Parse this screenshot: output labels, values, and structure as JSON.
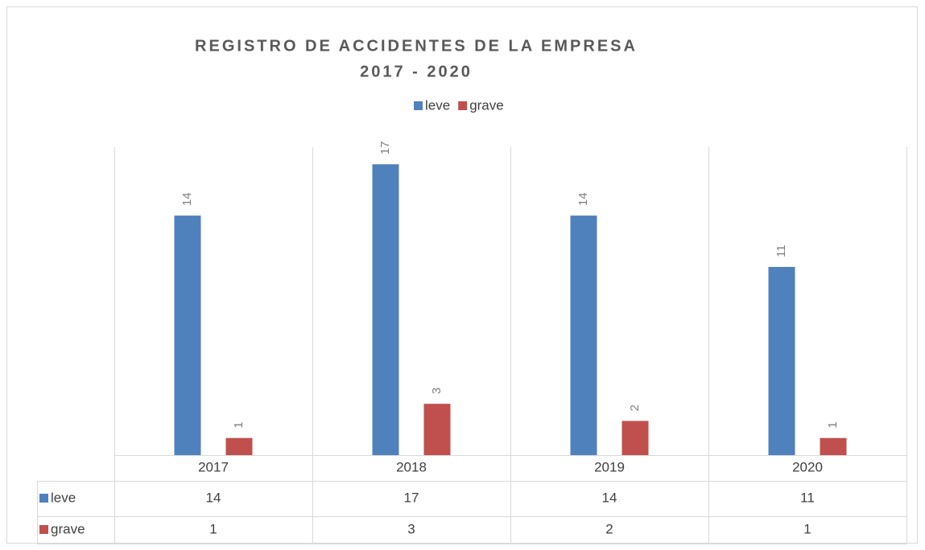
{
  "chart_data": {
    "type": "bar",
    "title": [
      "REGISTRO DE ACCIDENTES DE LA EMPRESA",
      "2017 - 2020"
    ],
    "categories": [
      "2017",
      "2018",
      "2019",
      "2020"
    ],
    "series": [
      {
        "name": "leve",
        "color": "#4f81bd",
        "values": [
          14,
          17,
          14,
          11
        ]
      },
      {
        "name": "grave",
        "color": "#c0504d",
        "values": [
          1,
          3,
          2,
          1
        ]
      }
    ],
    "ylim": [
      0,
      18
    ],
    "legend": "top",
    "grid": true,
    "data_table": true
  }
}
